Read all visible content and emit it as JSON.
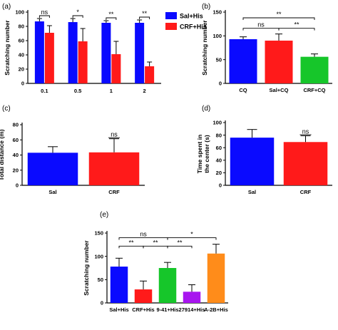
{
  "colors": {
    "blue": "#0a0aff",
    "red": "#ff1a1a",
    "green": "#16c62a",
    "purple": "#a815ef",
    "orange": "#ff8c1a"
  },
  "chart_data": [
    {
      "panel": "(a)",
      "type": "bar",
      "categories": [
        "0.1",
        "0.5",
        "1",
        "2"
      ],
      "ylabel": "Scratching number",
      "ylim": [
        0,
        100
      ],
      "yticks": [
        0,
        20,
        40,
        60,
        80,
        100
      ],
      "legend_position": "top-right",
      "series": [
        {
          "name": "Sal+His",
          "color": "blue",
          "values": [
            87,
            86,
            85,
            85
          ],
          "errors": [
            4,
            5,
            3,
            4
          ]
        },
        {
          "name": "CRF+His",
          "color": "red",
          "values": [
            71,
            59,
            41,
            24
          ],
          "errors": [
            10,
            18,
            18,
            6
          ]
        }
      ],
      "significance": [
        "ns",
        "*",
        "**",
        "**"
      ]
    },
    {
      "panel": "(b)",
      "type": "bar",
      "categories": [
        "CQ",
        "Sal+CQ",
        "CRF+CQ"
      ],
      "ylabel": "Scratching number",
      "ylim": [
        0,
        150
      ],
      "yticks": [
        0,
        50,
        100,
        150
      ],
      "values": [
        93,
        90,
        56
      ],
      "errors": [
        5,
        14,
        6
      ],
      "colors": [
        "blue",
        "red",
        "green"
      ],
      "comparisons": [
        {
          "from": 0,
          "to": 2,
          "label": "**"
        },
        {
          "from": 0,
          "to": 1,
          "label": "ns"
        },
        {
          "from": 1,
          "to": 2,
          "label": "**"
        }
      ]
    },
    {
      "panel": "(c)",
      "type": "bar",
      "categories": [
        "Sal",
        "CRF"
      ],
      "ylabel": "Total distance (m)",
      "ylim": [
        0,
        80
      ],
      "yticks": [
        0,
        20,
        40,
        60,
        80
      ],
      "values": [
        43,
        43.5
      ],
      "errors": [
        8,
        18
      ],
      "colors": [
        "blue",
        "red"
      ],
      "comparisons": [
        {
          "from": 1,
          "to": 1,
          "label": "ns"
        }
      ]
    },
    {
      "panel": "(d)",
      "type": "bar",
      "categories": [
        "Sal",
        "CRF"
      ],
      "ylabel_line1": "Time spent in",
      "ylabel_line2": "the center (s)",
      "ylim": [
        0,
        100
      ],
      "yticks": [
        0,
        20,
        40,
        60,
        80,
        100
      ],
      "values": [
        76,
        69
      ],
      "errors": [
        13,
        10
      ],
      "colors": [
        "blue",
        "red"
      ],
      "comparisons": [
        {
          "from": 1,
          "to": 1,
          "label": "ns"
        }
      ]
    },
    {
      "panel": "(e)",
      "type": "bar",
      "categories": [
        "Sal+His",
        "CRF+His",
        "9-41+His",
        "27914+His",
        "A-2B+His"
      ],
      "ylabel": "Scratching number",
      "ylim": [
        0,
        150
      ],
      "yticks": [
        0,
        50,
        100,
        150
      ],
      "values": [
        78,
        29,
        75,
        24,
        106
      ],
      "errors": [
        18,
        18,
        12,
        15,
        20
      ],
      "colors": [
        "blue",
        "red",
        "green",
        "purple",
        "orange"
      ],
      "comparisons": [
        {
          "from": 0,
          "to": 2,
          "label": "ns"
        },
        {
          "from": 2,
          "to": 4,
          "label": "*"
        },
        {
          "from": 0,
          "to": 1,
          "label": "**"
        },
        {
          "from": 1,
          "to": 2,
          "label": "**"
        },
        {
          "from": 2,
          "to": 3,
          "label": "**"
        }
      ]
    }
  ]
}
